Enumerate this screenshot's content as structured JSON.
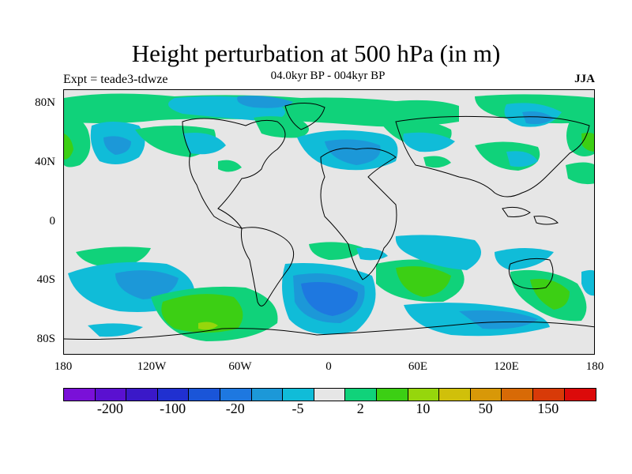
{
  "title": "Height perturbation at 500 hPa (in m)",
  "experiment_label": "Expt = teade3-tdwze",
  "period_label": "04.0kyr BP - 004kyr BP",
  "season_label": "JJA",
  "map": {
    "projection": "cylindrical equidistant",
    "lon_range": [
      -180,
      180
    ],
    "lat_range": [
      -90,
      90
    ],
    "x_tick_labels": [
      "180",
      "120W",
      "60W",
      "0",
      "60E",
      "120E",
      "180"
    ],
    "y_tick_labels": [
      "80N",
      "40N",
      "0",
      "40S",
      "80S"
    ],
    "background_color": "#e6e6e6"
  },
  "colorbar": {
    "colors": [
      "#7a10d8",
      "#5a10d0",
      "#3a18c8",
      "#2030d0",
      "#1a55d8",
      "#1e78e0",
      "#1c98d8",
      "#10bcd8",
      "#e6e6e6",
      "#10d27a",
      "#3ccf14",
      "#96d60c",
      "#d0c00a",
      "#d89808",
      "#d86a06",
      "#d83a08",
      "#dc0a0a"
    ],
    "labels": [
      "-200",
      "-100",
      "-20",
      "-5",
      "2",
      "10",
      "50",
      "150"
    ]
  }
}
